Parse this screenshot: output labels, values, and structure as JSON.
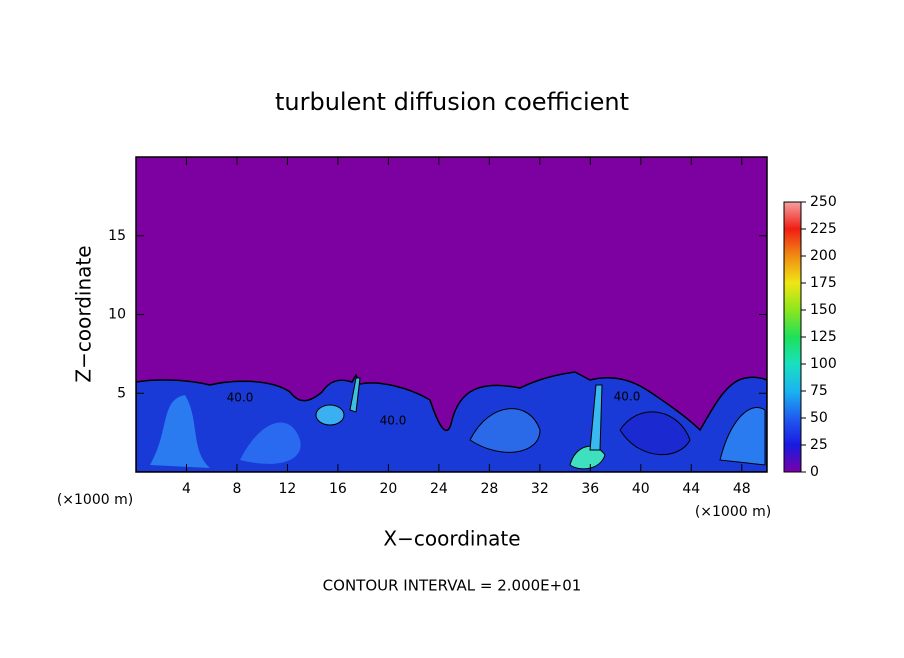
{
  "chart_data": {
    "type": "contour",
    "title": "turbulent diffusion coefficient",
    "xlabel": "X−coordinate",
    "ylabel": "Z−coordinate",
    "x_unit": "(×1000 m)",
    "y_unit": "(×1000 m)",
    "footnote": "CONTOUR INTERVAL = 2.000E+01",
    "xlim": [
      0,
      50
    ],
    "ylim": [
      0,
      20
    ],
    "xticks": [
      4,
      8,
      12,
      16,
      20,
      24,
      28,
      32,
      36,
      40,
      44,
      48
    ],
    "yticks": [
      5,
      10,
      15
    ],
    "contour_labels": [
      "40.0",
      "40.0",
      "40.0"
    ],
    "colorbar_lim": [
      0,
      250
    ],
    "colorbar_ticks": [
      0,
      25,
      50,
      75,
      100,
      125,
      150,
      175,
      200,
      225,
      250
    ],
    "colorbar_colors": [
      "#7a00a8",
      "#1a1ae0",
      "#1f5cf0",
      "#1ab4f0",
      "#19e0c0",
      "#1ee05a",
      "#8ce61e",
      "#f0e614",
      "#f08c14",
      "#f01e14",
      "#f5a0a0"
    ],
    "background_color": "#7d00a0"
  }
}
